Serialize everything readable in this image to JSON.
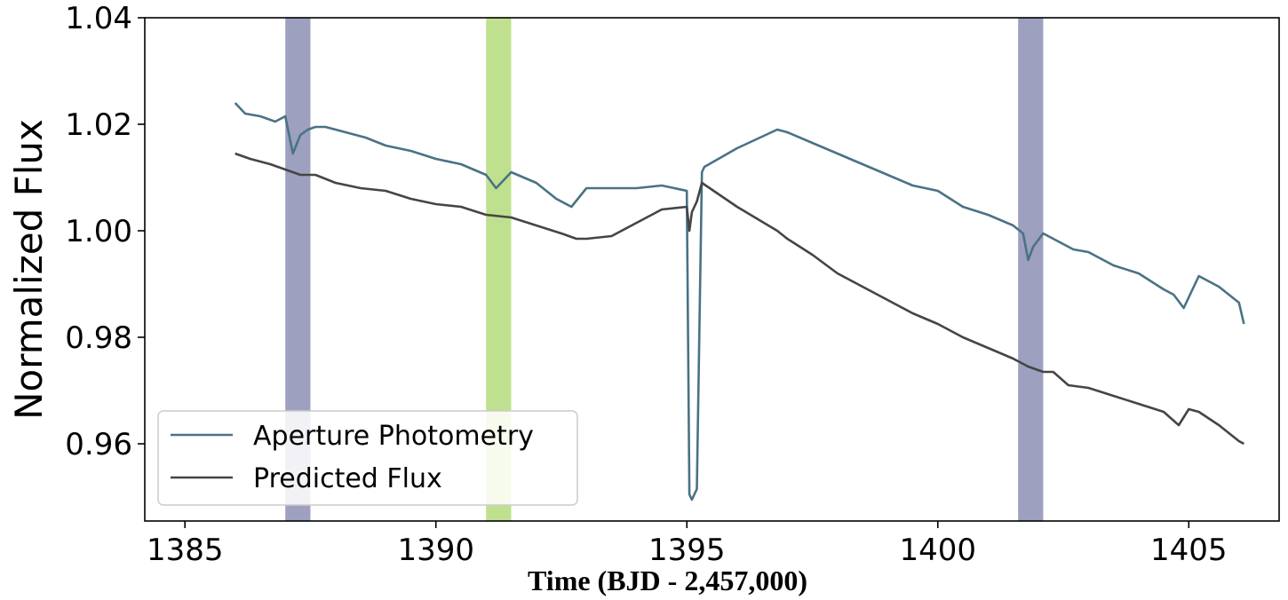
{
  "chart_data": {
    "type": "line",
    "xlabel": "Time (BJD - 2,457,000)",
    "ylabel": "Normalized Flux",
    "xlim": [
      1384.2,
      1406.8
    ],
    "ylim": [
      0.9455,
      1.04
    ],
    "xticks": [
      1385,
      1390,
      1395,
      1400,
      1405
    ],
    "xtick_labels": [
      "1385",
      "1390",
      "1395",
      "1400",
      "1405"
    ],
    "yticks": [
      0.96,
      0.98,
      1.0,
      1.02,
      1.04
    ],
    "ytick_labels": [
      "0.96",
      "0.98",
      "1.00",
      "1.02",
      "1.04"
    ],
    "grid": false,
    "legend_position": "lower-left",
    "shaded_regions": [
      {
        "x0": 1387.0,
        "x1": 1387.5,
        "color": "#7e80a9"
      },
      {
        "x0": 1391.0,
        "x1": 1391.5,
        "color": "#a9d66a"
      },
      {
        "x0": 1401.6,
        "x1": 1402.1,
        "color": "#7e80a9"
      }
    ],
    "series": [
      {
        "name": "Aperture Photometry",
        "color": "#4a7285",
        "x": [
          1386.0,
          1386.2,
          1386.5,
          1386.8,
          1387.0,
          1387.15,
          1387.3,
          1387.45,
          1387.6,
          1387.8,
          1388.2,
          1388.6,
          1389.0,
          1389.5,
          1390.0,
          1390.5,
          1391.0,
          1391.2,
          1391.5,
          1392.0,
          1392.4,
          1392.7,
          1393.0,
          1393.5,
          1394.0,
          1394.5,
          1395.0,
          1395.05,
          1395.1,
          1395.2,
          1395.3,
          1395.35,
          1396.0,
          1396.8,
          1397.0,
          1397.5,
          1398.0,
          1398.5,
          1399.0,
          1399.5,
          1400.0,
          1400.5,
          1401.0,
          1401.5,
          1401.7,
          1401.8,
          1401.9,
          1402.1,
          1402.3,
          1402.7,
          1403.0,
          1403.5,
          1404.0,
          1404.5,
          1404.7,
          1404.9,
          1405.2,
          1405.6,
          1406.0,
          1406.1
        ],
        "y": [
          1.024,
          1.022,
          1.0215,
          1.0205,
          1.0215,
          1.0145,
          1.018,
          1.019,
          1.0195,
          1.0195,
          1.0185,
          1.0175,
          1.016,
          1.015,
          1.0135,
          1.0125,
          1.0105,
          1.008,
          1.011,
          1.009,
          1.006,
          1.0045,
          1.008,
          1.008,
          1.008,
          1.0085,
          1.0075,
          0.9505,
          0.9495,
          0.9515,
          1.011,
          1.012,
          1.0155,
          1.019,
          1.0185,
          1.0165,
          1.0145,
          1.0125,
          1.0105,
          1.0085,
          1.0075,
          1.0045,
          1.003,
          1.001,
          0.9995,
          0.9945,
          0.997,
          0.9995,
          0.9985,
          0.9965,
          0.996,
          0.9935,
          0.992,
          0.989,
          0.988,
          0.9855,
          0.9915,
          0.9895,
          0.9865,
          0.9825
        ]
      },
      {
        "name": "Predicted Flux",
        "color": "#454545",
        "x": [
          1386.0,
          1386.3,
          1386.7,
          1387.0,
          1387.3,
          1387.6,
          1388.0,
          1388.5,
          1389.0,
          1389.5,
          1390.0,
          1390.5,
          1391.0,
          1391.5,
          1392.0,
          1392.5,
          1392.8,
          1393.0,
          1393.5,
          1394.0,
          1394.5,
          1395.0,
          1395.05,
          1395.1,
          1395.2,
          1395.3,
          1396.0,
          1396.8,
          1397.0,
          1397.5,
          1398.0,
          1398.5,
          1399.0,
          1399.5,
          1400.0,
          1400.5,
          1401.0,
          1401.5,
          1401.8,
          1402.1,
          1402.3,
          1402.6,
          1403.0,
          1403.5,
          1404.0,
          1404.5,
          1404.8,
          1405.0,
          1405.2,
          1405.6,
          1406.0,
          1406.1
        ],
        "y": [
          1.0145,
          1.0135,
          1.0125,
          1.0115,
          1.0105,
          1.0105,
          1.009,
          1.008,
          1.0075,
          1.006,
          1.005,
          1.0045,
          1.003,
          1.0025,
          1.001,
          0.9995,
          0.9985,
          0.9985,
          0.999,
          1.0015,
          1.004,
          1.0045,
          1.0,
          1.0035,
          1.0055,
          1.009,
          1.0045,
          1.0,
          0.9985,
          0.9955,
          0.992,
          0.9895,
          0.987,
          0.9845,
          0.9825,
          0.98,
          0.978,
          0.976,
          0.9745,
          0.9735,
          0.9735,
          0.971,
          0.9705,
          0.969,
          0.9675,
          0.966,
          0.9635,
          0.9665,
          0.966,
          0.9635,
          0.9605,
          0.96
        ]
      }
    ]
  }
}
